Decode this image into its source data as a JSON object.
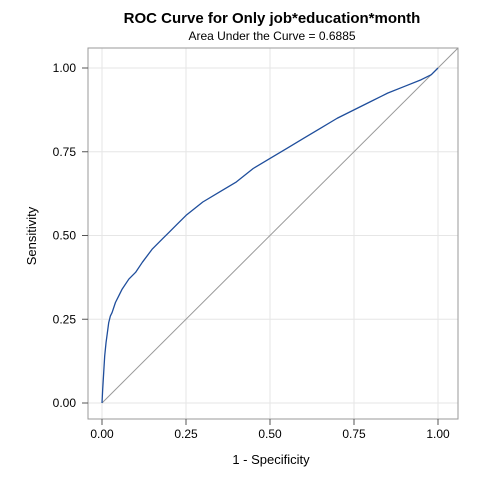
{
  "chart_data": {
    "type": "line",
    "title": "ROC Curve for Only job*education*month",
    "subtitle": "Area Under the Curve = 0.6885",
    "xlabel": "1 - Specificity",
    "ylabel": "Sensitivity",
    "xlim": [
      0,
      1
    ],
    "ylim": [
      0,
      1
    ],
    "xticks": [
      "0.00",
      "0.25",
      "0.50",
      "0.75",
      "1.00"
    ],
    "yticks": [
      "0.00",
      "0.25",
      "0.50",
      "0.75",
      "1.00"
    ],
    "grid": true,
    "series": [
      {
        "color": "#1f4e9c",
        "x": [
          0.0,
          0.002,
          0.005,
          0.008,
          0.012,
          0.016,
          0.02,
          0.025,
          0.03,
          0.04,
          0.05,
          0.06,
          0.08,
          0.1,
          0.12,
          0.15,
          0.18,
          0.2,
          0.22,
          0.25,
          0.3,
          0.35,
          0.4,
          0.45,
          0.5,
          0.55,
          0.6,
          0.65,
          0.7,
          0.75,
          0.8,
          0.85,
          0.9,
          0.95,
          0.98,
          1.0
        ],
        "y": [
          0.0,
          0.04,
          0.09,
          0.14,
          0.18,
          0.21,
          0.24,
          0.26,
          0.27,
          0.3,
          0.32,
          0.34,
          0.37,
          0.39,
          0.42,
          0.46,
          0.49,
          0.51,
          0.53,
          0.56,
          0.6,
          0.63,
          0.66,
          0.7,
          0.73,
          0.76,
          0.79,
          0.82,
          0.85,
          0.875,
          0.9,
          0.925,
          0.945,
          0.965,
          0.98,
          1.0
        ]
      },
      {
        "color": "#999999",
        "x": [
          0,
          1
        ],
        "y": [
          0,
          1
        ]
      }
    ]
  }
}
